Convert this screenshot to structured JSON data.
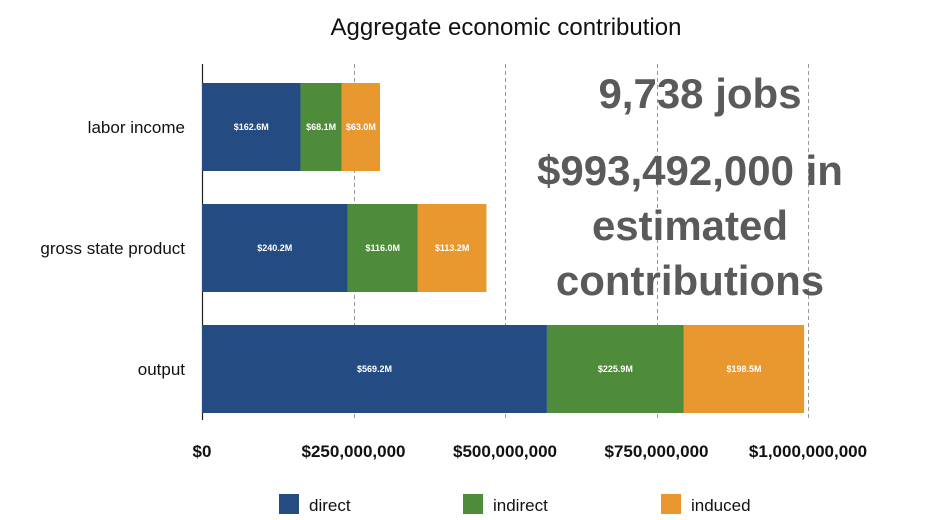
{
  "chart_data": {
    "type": "bar",
    "orientation": "horizontal",
    "stacked": true,
    "title": "Aggregate economic contribution",
    "categories": [
      "labor income",
      "gross state product",
      "output"
    ],
    "series": [
      {
        "name": "direct",
        "color": "#244c82",
        "values": [
          162600000,
          240200000,
          569200000
        ],
        "labels": [
          "$162.6M",
          "$240.2M",
          "$569.2M"
        ]
      },
      {
        "name": "indirect",
        "color": "#4e8b3a",
        "values": [
          68100000,
          116000000,
          225900000
        ],
        "labels": [
          "$68.1M",
          "$116.0M",
          "$225.9M"
        ]
      },
      {
        "name": "induced",
        "color": "#e8982f",
        "values": [
          63000000,
          113200000,
          198500000
        ],
        "labels": [
          "$63.0M",
          "$113.2M",
          "$198.5M"
        ]
      }
    ],
    "xlim": [
      0,
      1000000000
    ],
    "x_ticks": [
      0,
      250000000,
      500000000,
      750000000,
      1000000000
    ],
    "x_tick_labels": [
      "$0",
      "$250,000,000",
      "$500,000,000",
      "$750,000,000",
      "$1,000,000,000"
    ],
    "grid": "vertical dashed",
    "legend_position": "bottom"
  },
  "annotation": {
    "jobs": "9,738 jobs",
    "lines": [
      "$993,492,000 in",
      "estimated",
      "contributions"
    ]
  }
}
